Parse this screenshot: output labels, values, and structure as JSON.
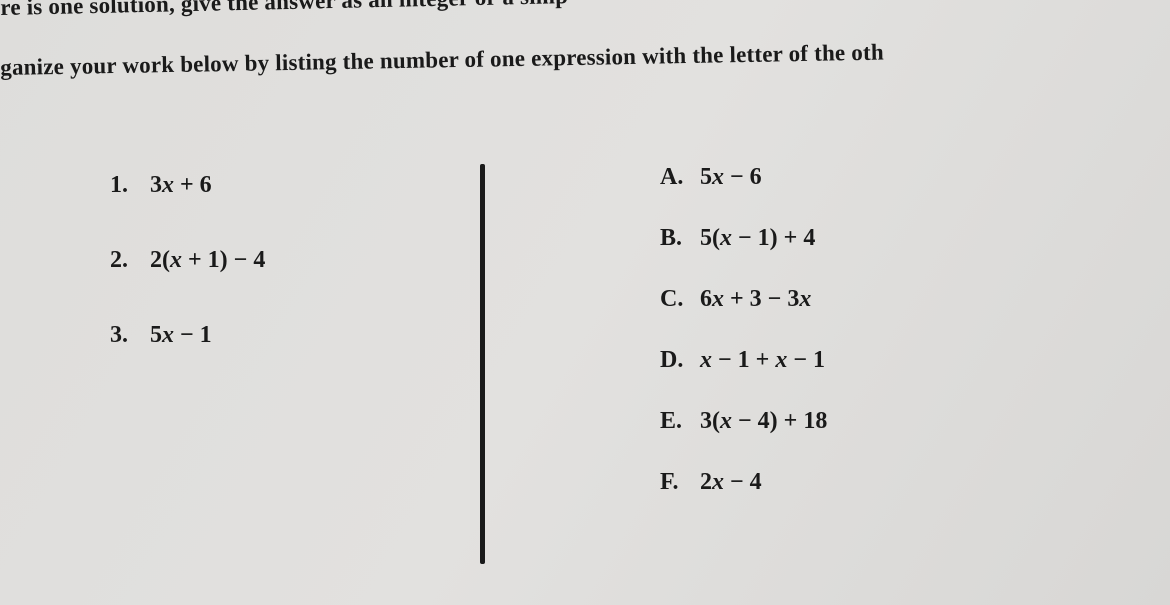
{
  "intro": {
    "line1": "re is one solution, give the answer as an integer or a simp",
    "line2": "ganize your work below by listing the number of one expression with the letter of the oth"
  },
  "left": [
    {
      "num": "1.",
      "expr": "3<i>x</i> + 6"
    },
    {
      "num": "2.",
      "expr": "2(<i>x</i> + 1) − 4"
    },
    {
      "num": "3.",
      "expr": "5<i>x</i> − 1"
    }
  ],
  "right": [
    {
      "num": "A.",
      "expr": "5<i>x</i> − 6"
    },
    {
      "num": "B.",
      "expr": "5(<i>x</i> − 1) + 4"
    },
    {
      "num": "C.",
      "expr": "6<i>x</i> + 3 − 3<i>x</i>"
    },
    {
      "num": "D.",
      "expr": "<i>x</i> − 1 + <i>x</i> − 1"
    },
    {
      "num": "E.",
      "expr": "3(<i>x</i> − 4) + 18"
    },
    {
      "num": "F.",
      "expr": "2<i>x</i> − 4"
    }
  ]
}
